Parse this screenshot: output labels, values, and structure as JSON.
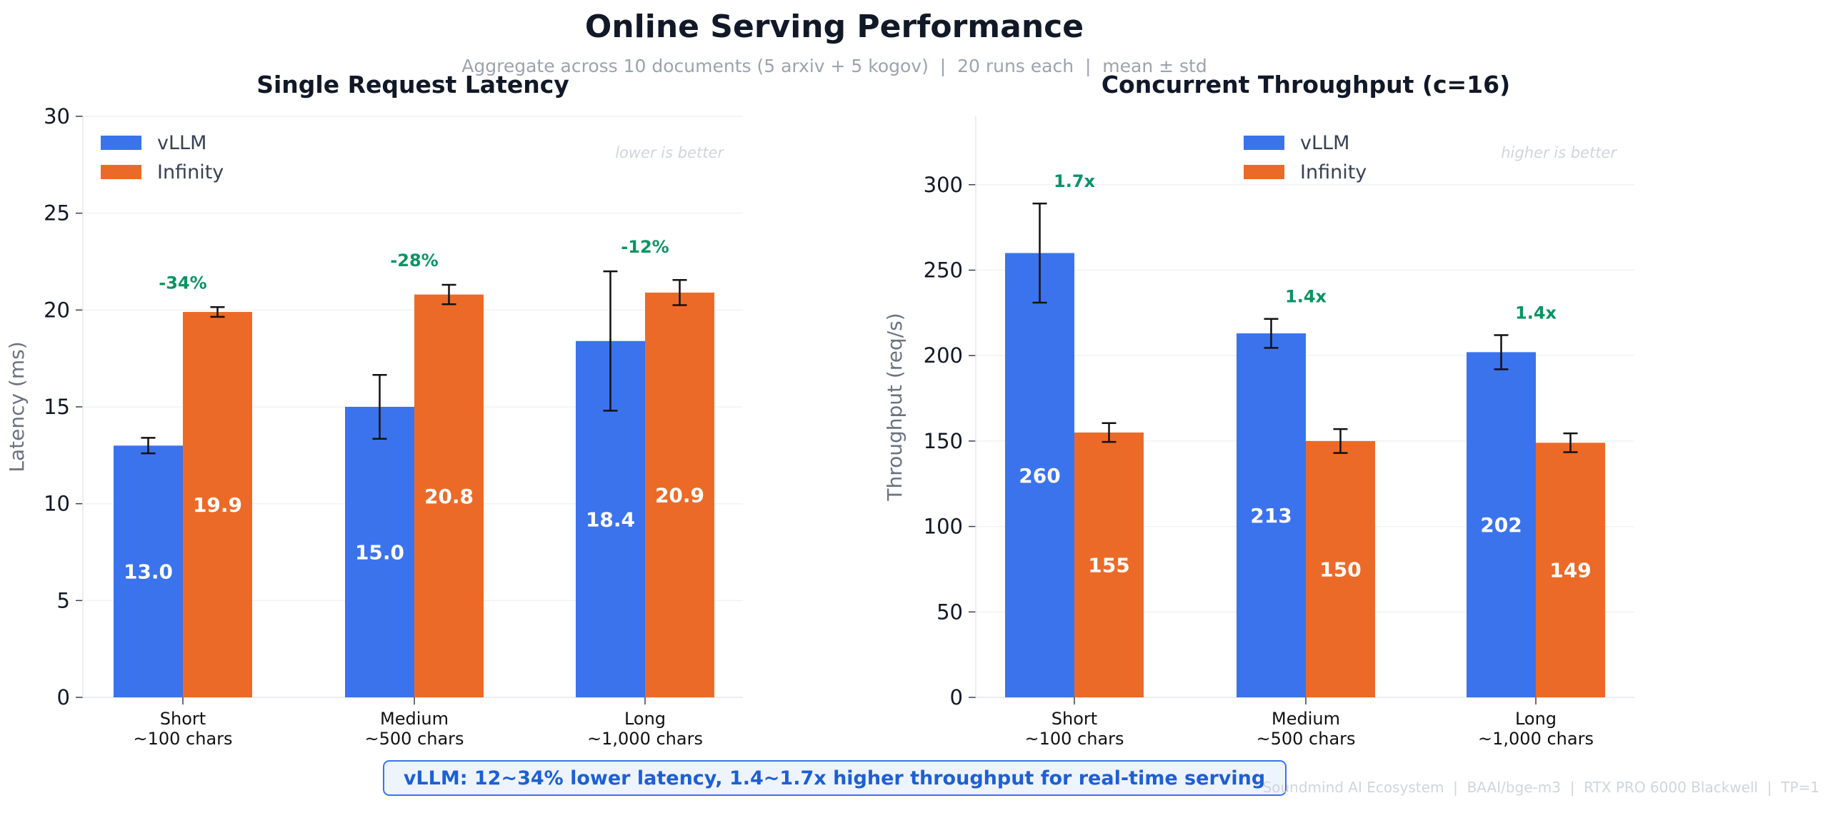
{
  "title": "Online Serving Performance",
  "subtitle": "Aggregate across 10 documents (5 arxiv + 5 kogov)  |  20 runs each  |  mean ± std",
  "footer_banner": "vLLM: 12~34% lower latency, 1.4~1.7x higher throughput for real-time serving",
  "footer_credit": "Soundmind AI Ecosystem  |  BAAI/bge-m3  |  RTX PRO 6000 Blackwell  |  TP=1",
  "colors": {
    "vllm": "#3b73ec",
    "infinity": "#ec6a28",
    "annotation": "#0a9463"
  },
  "chart_data": [
    {
      "type": "bar",
      "title": "Single Request Latency",
      "ylabel": "Latency (ms)",
      "xlabel": "",
      "ylim": [
        0,
        30
      ],
      "yticks": [
        0,
        5,
        10,
        15,
        20,
        25,
        30
      ],
      "grid": true,
      "legend_position": "top-left",
      "note": "lower is better",
      "categories": [
        "Short\n~100 chars",
        "Medium\n~500 chars",
        "Long\n~1,000 chars"
      ],
      "series": [
        {
          "name": "vLLM",
          "values": [
            13.0,
            15.0,
            18.4
          ],
          "std": [
            0.4,
            1.65,
            3.6
          ],
          "labels": [
            "13.0",
            "15.0",
            "18.4"
          ]
        },
        {
          "name": "Infinity",
          "values": [
            19.9,
            20.8,
            20.9
          ],
          "std": [
            0.25,
            0.5,
            0.65
          ],
          "labels": [
            "19.9",
            "20.8",
            "20.9"
          ]
        }
      ],
      "annotations": [
        "-34%",
        "-28%",
        "-12%"
      ]
    },
    {
      "type": "bar",
      "title": "Concurrent Throughput  (c=16)",
      "ylabel": "Throughput (req/s)",
      "xlabel": "",
      "ylim": [
        0,
        340
      ],
      "yticks": [
        0,
        50,
        100,
        150,
        200,
        250,
        300
      ],
      "grid": true,
      "legend_position": "top-center",
      "note": "higher is better",
      "categories": [
        "Short\n~100 chars",
        "Medium\n~500 chars",
        "Long\n~1,000 chars"
      ],
      "series": [
        {
          "name": "vLLM",
          "values": [
            260,
            213,
            202
          ],
          "std": [
            29,
            8.5,
            10
          ],
          "labels": [
            "260",
            "213",
            "202"
          ]
        },
        {
          "name": "Infinity",
          "values": [
            155,
            150,
            149
          ],
          "std": [
            5.5,
            7,
            5.5
          ],
          "labels": [
            "155",
            "150",
            "149"
          ]
        }
      ],
      "annotations": [
        "1.7x",
        "1.4x",
        "1.4x"
      ]
    }
  ]
}
